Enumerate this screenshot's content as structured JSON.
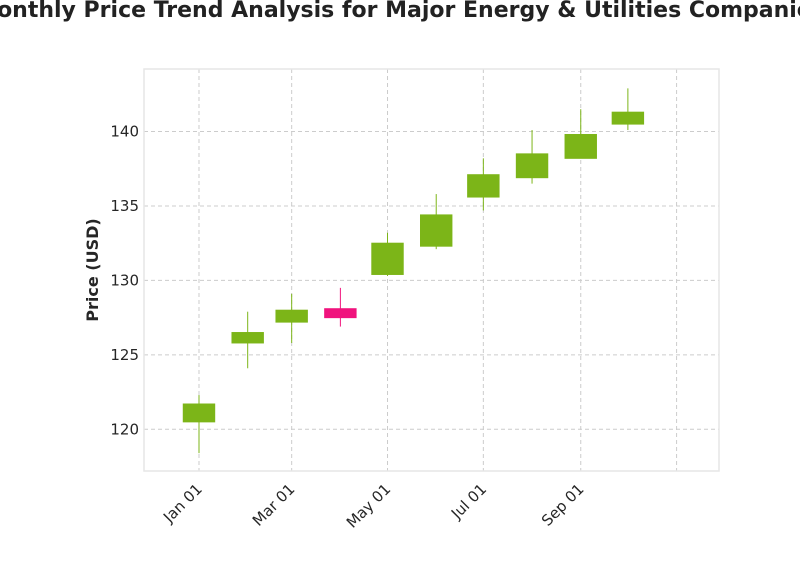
{
  "chart_data": {
    "type": "candlestick",
    "title": "Monthly Price Trend Analysis for Major Energy & Utilities Companies",
    "xlabel": "",
    "ylabel": "Price (USD)",
    "ylim": [
      117.2,
      144.2
    ],
    "y_ticks": [
      120,
      125,
      130,
      135,
      140
    ],
    "x_ticks": [
      {
        "date": "2023-01-01",
        "label": "Jan 01"
      },
      {
        "date": "2023-03-01",
        "label": "Mar 01"
      },
      {
        "date": "2023-05-01",
        "label": "May 01"
      },
      {
        "date": "2023-07-01",
        "label": "Jul 01"
      },
      {
        "date": "2023-09-01",
        "label": "Sep 01"
      },
      {
        "date": "2023-11-01",
        "label": ""
      }
    ],
    "xlim": [
      "2022-11-27",
      "2023-11-28"
    ],
    "grid": true,
    "colors": {
      "up": "#7cb518",
      "down": "#f0137d",
      "grid": "#cccccc",
      "frame": "#e6e6e6"
    },
    "series": [
      {
        "date": "2023-01-01",
        "open": 120.5,
        "high": 122.3,
        "low": 118.4,
        "close": 121.7
      },
      {
        "date": "2023-02-01",
        "open": 125.8,
        "high": 127.9,
        "low": 124.1,
        "close": 126.5
      },
      {
        "date": "2023-03-01",
        "open": 127.2,
        "high": 129.1,
        "low": 125.8,
        "close": 128.0
      },
      {
        "date": "2023-04-01",
        "open": 128.1,
        "high": 129.5,
        "low": 126.9,
        "close": 127.5
      },
      {
        "date": "2023-05-01",
        "open": 130.4,
        "high": 133.2,
        "low": 130.3,
        "close": 132.5
      },
      {
        "date": "2023-06-01",
        "open": 132.3,
        "high": 135.8,
        "low": 132.1,
        "close": 134.4
      },
      {
        "date": "2023-07-01",
        "open": 135.6,
        "high": 138.2,
        "low": 134.7,
        "close": 137.1
      },
      {
        "date": "2023-08-01",
        "open": 136.9,
        "high": 140.1,
        "low": 136.5,
        "close": 138.5
      },
      {
        "date": "2023-09-01",
        "open": 138.2,
        "high": 141.5,
        "low": 138.2,
        "close": 139.8
      },
      {
        "date": "2023-10-01",
        "open": 140.5,
        "high": 142.9,
        "low": 140.1,
        "close": 141.3
      }
    ]
  }
}
